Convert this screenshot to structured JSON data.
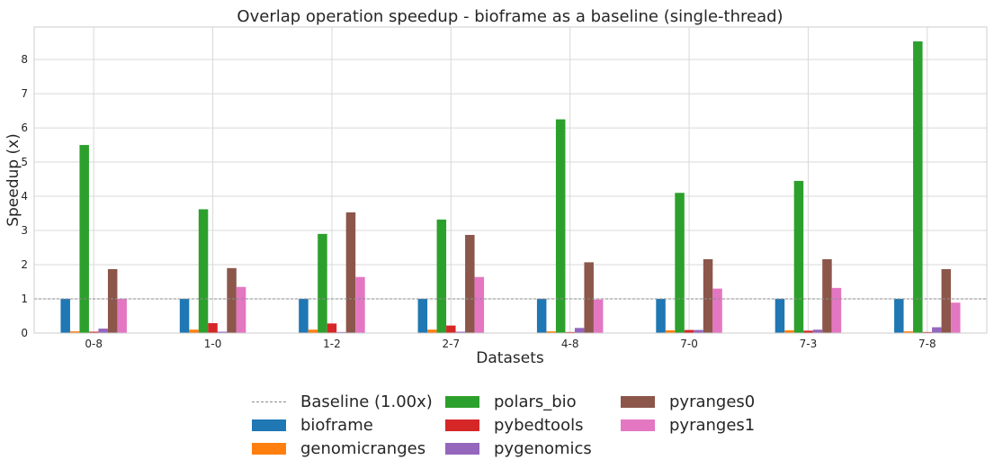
{
  "chart_data": {
    "type": "bar",
    "title": "Overlap operation speedup - bioframe as a baseline (single-thread)",
    "xlabel": "Datasets",
    "ylabel": "Speedup (x)",
    "categories": [
      "0-8",
      "1-0",
      "1-2",
      "2-7",
      "4-8",
      "7-0",
      "7-3",
      "7-8"
    ],
    "ylim": [
      0,
      8.95
    ],
    "yticks": [
      0,
      1,
      2,
      3,
      4,
      5,
      6,
      7,
      8
    ],
    "grid": true,
    "baseline": {
      "label": "Baseline (1.00x)",
      "value": 1.0,
      "color": "#8c8c8c"
    },
    "series": [
      {
        "name": "bioframe",
        "color": "#1f77b4",
        "values": [
          1.0,
          1.0,
          1.0,
          1.0,
          1.0,
          1.0,
          1.0,
          1.0
        ]
      },
      {
        "name": "genomicranges",
        "color": "#ff7f0e",
        "values": [
          0.05,
          0.1,
          0.1,
          0.1,
          0.05,
          0.08,
          0.08,
          0.05
        ]
      },
      {
        "name": "polars_bio",
        "color": "#2ca02c",
        "values": [
          5.5,
          3.62,
          2.9,
          3.32,
          6.25,
          4.1,
          4.45,
          8.53
        ]
      },
      {
        "name": "pybedtools",
        "color": "#d62728",
        "values": [
          0.04,
          0.29,
          0.28,
          0.22,
          0.03,
          0.09,
          0.07,
          0.03
        ]
      },
      {
        "name": "pygenomics",
        "color": "#9467bd",
        "values": [
          0.13,
          0.04,
          0.03,
          0.04,
          0.15,
          0.09,
          0.1,
          0.17
        ]
      },
      {
        "name": "pyranges0",
        "color": "#8c564b",
        "values": [
          1.87,
          1.9,
          3.53,
          2.87,
          2.07,
          2.16,
          2.16,
          1.87
        ]
      },
      {
        "name": "pyranges1",
        "color": "#e377c2",
        "values": [
          1.0,
          1.35,
          1.64,
          1.64,
          0.98,
          1.3,
          1.32,
          0.89
        ]
      }
    ],
    "legend": {
      "placement": "bottom-center",
      "columns": [
        [
          "Baseline (1.00x)",
          "bioframe",
          "genomicranges"
        ],
        [
          "polars_bio",
          "pybedtools",
          "pygenomics"
        ],
        [
          "pyranges0",
          "pyranges1"
        ]
      ]
    }
  }
}
